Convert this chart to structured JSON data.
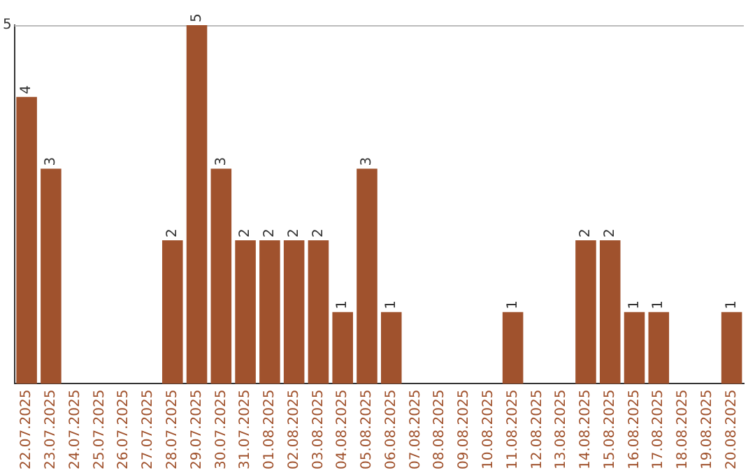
{
  "chart_data": {
    "type": "bar",
    "categories": [
      "22.07.2025",
      "23.07.2025",
      "24.07.2025",
      "25.07.2025",
      "26.07.2025",
      "27.07.2025",
      "28.07.2025",
      "29.07.2025",
      "30.07.2025",
      "31.07.2025",
      "01.08.2025",
      "02.08.2025",
      "03.08.2025",
      "04.08.2025",
      "05.08.2025",
      "06.08.2025",
      "07.08.2025",
      "08.08.2025",
      "09.08.2025",
      "10.08.2025",
      "11.08.2025",
      "12.08.2025",
      "13.08.2025",
      "14.08.2025",
      "15.08.2025",
      "16.08.2025",
      "17.08.2025",
      "18.08.2025",
      "19.08.2025",
      "20.08.2025"
    ],
    "values": [
      4,
      3,
      0,
      0,
      0,
      0,
      2,
      5,
      3,
      2,
      2,
      2,
      2,
      1,
      3,
      1,
      0,
      0,
      0,
      0,
      1,
      0,
      0,
      2,
      2,
      1,
      1,
      0,
      0,
      1
    ],
    "value_labels": [
      "4",
      "3",
      null,
      null,
      null,
      null,
      "2",
      "5",
      "3",
      "2",
      "2",
      "2",
      "2",
      "1",
      "3",
      "1",
      null,
      null,
      null,
      null,
      "1",
      null,
      null,
      "2",
      "2",
      "1",
      "1",
      null,
      null,
      "1"
    ],
    "color": "#a0522d",
    "ylim": [
      0,
      5
    ],
    "yticks": [
      5
    ],
    "legend": false
  }
}
